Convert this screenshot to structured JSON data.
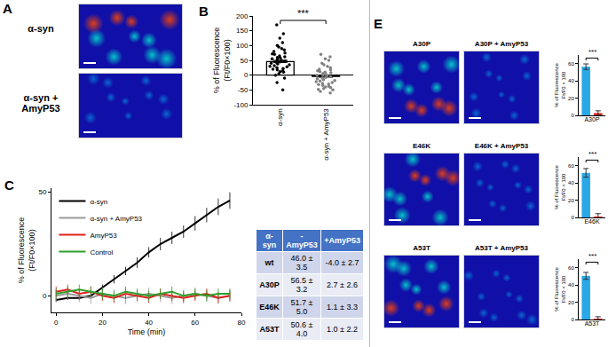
{
  "panel_A": {
    "label": "A",
    "captions": [
      "α-syn",
      "α-syn + AmyP53"
    ]
  },
  "chart_data": [
    {
      "label": "B",
      "type": "strip",
      "ylabel": [
        "% of Fluorescence",
        "(Ft/F0×100)"
      ],
      "categories": [
        "α-syn",
        "α-syn + AmyP53"
      ],
      "points": [
        [
          170,
          140,
          125,
          110,
          100,
          95,
          90,
          85,
          80,
          75,
          72,
          70,
          65,
          62,
          60,
          58,
          55,
          52,
          50,
          48,
          45,
          42,
          40,
          38,
          35,
          32,
          30,
          28,
          25,
          22,
          20,
          18,
          15,
          12,
          10,
          5,
          0,
          -10,
          -25,
          -50
        ],
        [
          70,
          62,
          55,
          50,
          40,
          35,
          30,
          25,
          20,
          18,
          15,
          12,
          10,
          8,
          5,
          3,
          0,
          0,
          -2,
          -5,
          -8,
          -10,
          -12,
          -15,
          -18,
          -20,
          -22,
          -25,
          -28,
          -30,
          -32,
          -35,
          -38,
          -40,
          -42,
          -45,
          -48,
          -50,
          -55,
          -60
        ]
      ],
      "colors": [
        "#000000",
        "#808080"
      ],
      "means": [
        46.0,
        -4.0
      ],
      "errors": [
        3.5,
        2.7
      ],
      "ylim": [
        -100,
        200
      ],
      "yticks": [
        -100,
        -50,
        0,
        50,
        100,
        150,
        200
      ],
      "grid": false,
      "annotation": "***"
    },
    {
      "label": "C",
      "type": "line",
      "xlabel": "Time (min)",
      "ylabel": [
        "% of Fluorescence",
        "(Ft/F0×100)"
      ],
      "x": [
        0,
        5,
        10,
        15,
        20,
        25,
        30,
        35,
        40,
        45,
        50,
        55,
        60,
        65,
        70,
        75
      ],
      "series": [
        {
          "name": "α-syn",
          "color": "#000000",
          "values": [
            -2,
            -1,
            -1,
            0,
            4,
            8,
            12,
            16,
            21,
            25,
            28,
            31,
            35,
            39,
            43,
            46
          ],
          "errors": [
            1,
            1,
            1,
            1,
            1.5,
            2,
            2,
            2.5,
            2.5,
            3,
            3,
            3,
            3.5,
            3.5,
            4,
            4
          ]
        },
        {
          "name": "α-syn + AmyP53",
          "color": "#9a9a9a",
          "values": [
            0,
            1,
            0,
            -1,
            1,
            0,
            -1,
            0,
            1,
            0,
            -1,
            0,
            1,
            0,
            -1,
            0
          ],
          "errors": [
            3,
            3,
            3,
            3,
            3,
            3,
            3,
            3,
            3,
            3,
            3,
            3,
            3,
            3,
            3,
            3
          ]
        },
        {
          "name": "AmyP53",
          "color": "#e0201b",
          "values": [
            2,
            3,
            1,
            2,
            0,
            -1,
            1,
            0,
            -1,
            1,
            0,
            -1,
            0,
            1,
            -1,
            0
          ],
          "errors": [
            2.5,
            2.5,
            2.5,
            2.5,
            2.5,
            2.5,
            2.5,
            2.5,
            2.5,
            2.5,
            2.5,
            2.5,
            2.5,
            2.5,
            2.5,
            2.5
          ]
        },
        {
          "name": "Control",
          "color": "#2ca02c",
          "values": [
            1,
            2,
            3,
            2,
            1,
            0,
            2,
            1,
            0,
            1,
            2,
            0,
            1,
            0,
            1,
            1
          ],
          "errors": [
            2.5,
            2.5,
            2.5,
            2.5,
            2.5,
            2.5,
            2.5,
            2.5,
            2.5,
            2.5,
            2.5,
            2.5,
            2.5,
            2.5,
            2.5,
            2.5
          ]
        }
      ],
      "xlim": [
        -2,
        80
      ],
      "xticks": [
        0,
        20,
        40,
        60,
        80
      ],
      "ylim": [
        -8,
        52
      ],
      "yticks": [
        0,
        50
      ],
      "grid": false,
      "legend": "upper left"
    },
    {
      "type": "bar",
      "xlabel": "A30P",
      "ylabel": [
        "% of Fluorescence",
        "Ft/F0 × 100"
      ],
      "categories": [
        null,
        null
      ],
      "values": [
        56.5,
        2.7
      ],
      "errors": [
        3.2,
        2.6
      ],
      "colors": [
        "#2aa7e6",
        "#e8231c"
      ],
      "ylim": [
        0,
        70
      ],
      "yticks": [
        0,
        20,
        40,
        60
      ],
      "tick_labels": "y",
      "grid": false,
      "annotation": "***"
    },
    {
      "type": "bar",
      "xlabel": "E46K",
      "ylabel": [
        "% of Fluorescence",
        "Ft/F0 × 100"
      ],
      "categories": [
        null,
        null
      ],
      "values": [
        51.7,
        1.1
      ],
      "errors": [
        5.0,
        3.3
      ],
      "colors": [
        "#2aa7e6",
        "#e8231c"
      ],
      "ylim": [
        0,
        70
      ],
      "yticks": [
        0,
        20,
        40,
        60
      ],
      "tick_labels": "y",
      "grid": false,
      "annotation": "***"
    },
    {
      "type": "bar",
      "xlabel": "A53T",
      "ylabel": [
        "% of Fluorescence",
        "Ft/F0 × 100"
      ],
      "categories": [
        null,
        null
      ],
      "values": [
        50.6,
        1.0
      ],
      "errors": [
        4.0,
        2.2
      ],
      "colors": [
        "#2aa7e6",
        "#e8231c"
      ],
      "ylim": [
        0,
        70
      ],
      "yticks": [
        0,
        20,
        40,
        60
      ],
      "tick_labels": "y",
      "grid": false,
      "annotation": "***"
    }
  ],
  "table": {
    "header": [
      "α-syn",
      "-AmyP53",
      "+AmyP53"
    ],
    "rows": [
      [
        "wt",
        "46.0 ± 3.5",
        "-4.0 ± 2.7"
      ],
      [
        "A30P",
        "56.5 ± 3.2",
        "2.7 ± 2.6"
      ],
      [
        "E46K",
        "51.7 ± 5.0",
        "1.1 ± 3.3"
      ],
      [
        "A53T",
        "50.6 ± 4.0",
        "1.0 ± 2.2"
      ]
    ]
  },
  "panel_E": {
    "label": "E",
    "captions": [
      [
        "A30P",
        "A30P + AmyP53"
      ],
      [
        "E46K",
        "E46K + AmyP53"
      ],
      [
        "A53T",
        "A53T + AmyP53"
      ]
    ]
  }
}
